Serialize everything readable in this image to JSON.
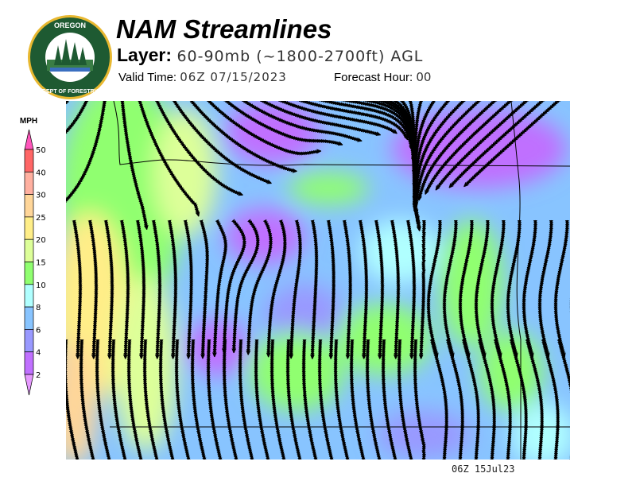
{
  "header": {
    "title": "NAM Streamlines",
    "layer_label": "Layer:",
    "layer_value": "60-90mb (~1800-2700ft) AGL",
    "valid_label": "Valid Time:",
    "valid_value": "06Z 07/15/2023",
    "forecast_label": "Forecast Hour:",
    "forecast_value": "00"
  },
  "logo": {
    "text_top": "OREGON",
    "text_bottom": "DEPARTMENT OF FORESTRY"
  },
  "legend": {
    "unit": "MPH",
    "bins": [
      {
        "label": "50",
        "color": "#ff6666"
      },
      {
        "label": "40",
        "color": "#ffb0a0"
      },
      {
        "label": "30",
        "color": "#ffd699"
      },
      {
        "label": "25",
        "color": "#ffee88"
      },
      {
        "label": "20",
        "color": "#ddff99"
      },
      {
        "label": "15",
        "color": "#90ff70"
      },
      {
        "label": "10",
        "color": "#b0ffff"
      },
      {
        "label": "8",
        "color": "#88c4ff"
      },
      {
        "label": "6",
        "color": "#9999ff"
      },
      {
        "label": "4",
        "color": "#c070ff"
      }
    ],
    "last_label": "2",
    "top_arrow_color": "#ff55bb",
    "bottom_arrow_color": "#e699ff"
  },
  "footer": {
    "timestamp": "06Z 15Jul23"
  }
}
